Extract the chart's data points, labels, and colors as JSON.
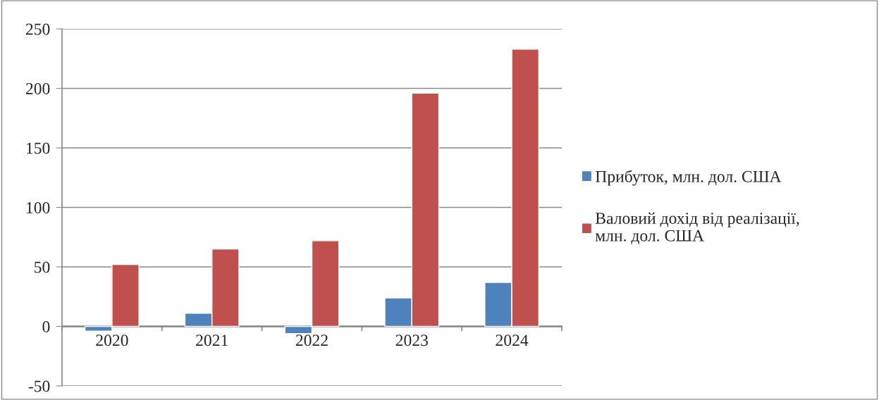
{
  "chart_data": {
    "type": "bar",
    "categories": [
      "2020",
      "2021",
      "2022",
      "2023",
      "2024"
    ],
    "series": [
      {
        "name": "Прибуток, млн. дол. США",
        "color": "#4f81bd",
        "values": [
          -4,
          11,
          -6,
          24,
          37
        ]
      },
      {
        "name": "Валовий дохід від реалізації, млн. дол. США",
        "color": "#c0504d",
        "values": [
          52,
          65,
          72,
          196,
          233
        ]
      }
    ],
    "ylim": [
      -50,
      250
    ],
    "yticks": [
      -50,
      0,
      50,
      100,
      150,
      200,
      250
    ],
    "grid": "y",
    "legend": "right"
  }
}
